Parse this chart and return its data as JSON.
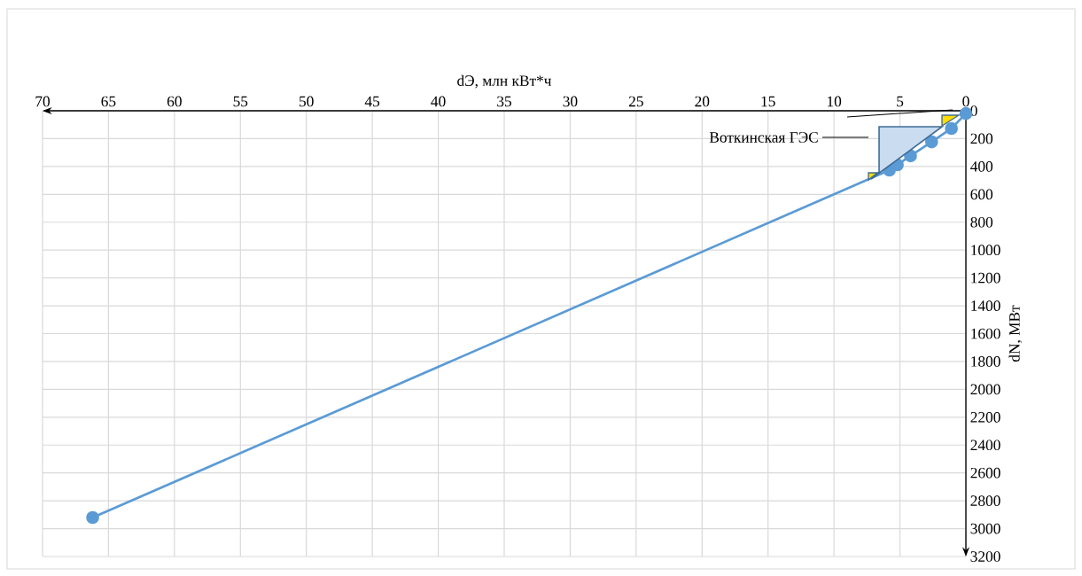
{
  "chart_data": {
    "type": "line",
    "xlabel": "dЭ, млн кВт*ч",
    "ylabel": "dN, МВт",
    "x": [
      66.2,
      5.8,
      5.2,
      4.2,
      2.6,
      1.1,
      0
    ],
    "series": [
      {
        "color": "#5b9bd5",
        "values": [
          2920,
          426,
          388,
          324,
          223,
          127,
          20
        ]
      }
    ],
    "xlim": [
      70,
      0
    ],
    "xticks": [
      70,
      65,
      60,
      55,
      50,
      45,
      40,
      35,
      30,
      25,
      20,
      15,
      10,
      5,
      0
    ],
    "ylim": [
      3200,
      0
    ],
    "yticks": [
      0,
      200,
      400,
      600,
      800,
      1000,
      1200,
      1400,
      1600,
      1800,
      2000,
      2200,
      2400,
      2600,
      2800,
      3000,
      3200
    ],
    "grid": true,
    "marker": "circle",
    "line_style": "solid",
    "annotations": [
      "Воткинская ГЭС"
    ]
  }
}
